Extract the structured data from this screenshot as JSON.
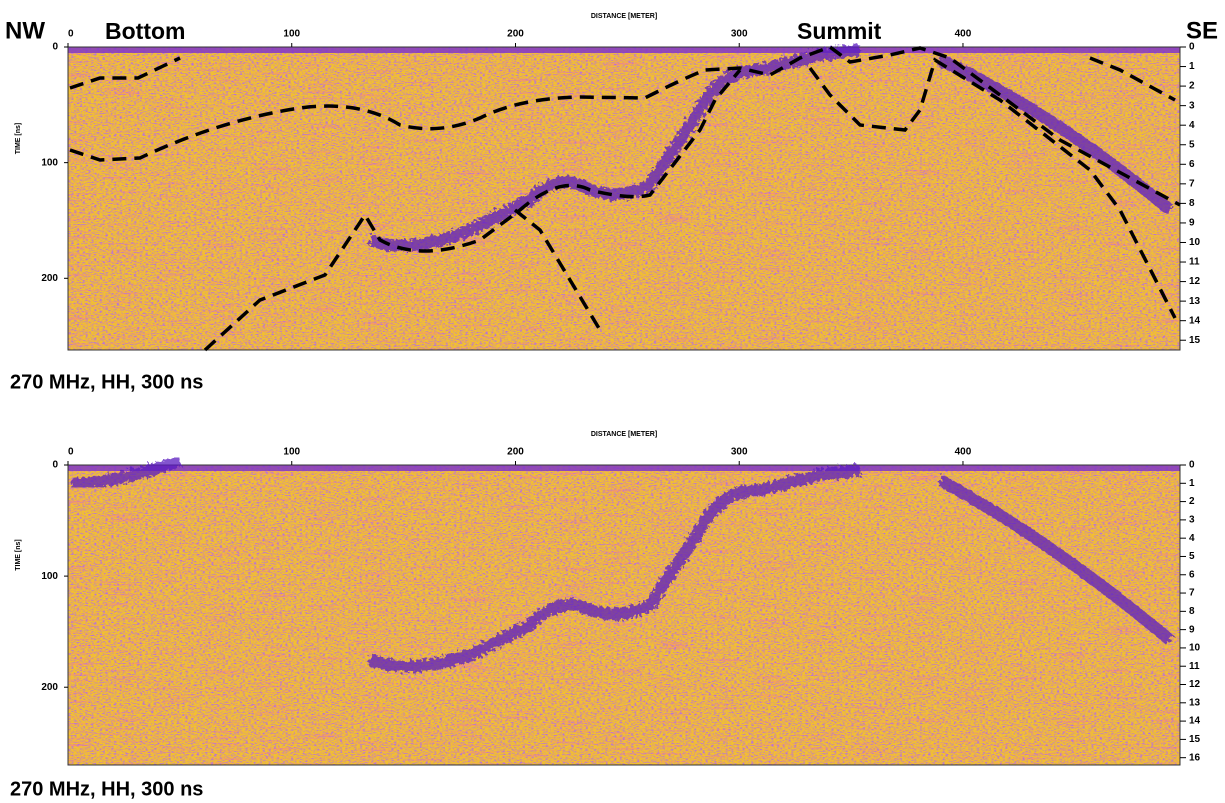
{
  "annotations": [
    "NW",
    "Bottom",
    "Summit",
    "SE"
  ],
  "chart_data": [
    {
      "type": "radargram",
      "x_label": "DISTANCE [METER]",
      "y_label": "TIME [ns]",
      "caption": "270 MHz, HH, 300 ns",
      "xlim": [
        0,
        497
      ],
      "xticks": [
        0,
        100,
        200,
        300,
        400
      ],
      "ylim": [
        0,
        262
      ],
      "yticks": [
        0,
        100,
        200
      ],
      "y2lim": [
        0,
        15.5
      ],
      "y2ticks": [
        0,
        1,
        2,
        3,
        4,
        5,
        6,
        7,
        8,
        9,
        10,
        11,
        12,
        13,
        14,
        15
      ]
    },
    {
      "type": "radargram",
      "x_label": "DISTANCE [METER]",
      "y_label": "TIME [ns]",
      "caption": "270 MHz, HH, 300 ns",
      "xlim": [
        0,
        497
      ],
      "xticks": [
        0,
        100,
        200,
        300,
        400
      ],
      "ylim": [
        0,
        270
      ],
      "yticks": [
        0,
        100,
        200
      ],
      "y2lim": [
        0,
        16.4
      ],
      "y2ticks": [
        0,
        1,
        2,
        3,
        4,
        5,
        6,
        7,
        8,
        9,
        10,
        11,
        12,
        13,
        14,
        15,
        16
      ]
    }
  ]
}
